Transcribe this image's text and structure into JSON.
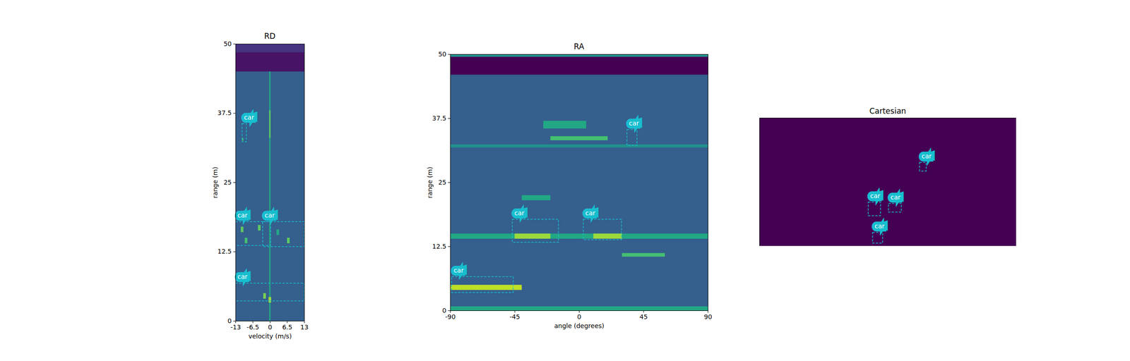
{
  "chart_data": [
    {
      "type": "heatmap",
      "title": "RD",
      "x_label": "velocity (m/s)",
      "y_label": "range (m)",
      "xlim": [
        -13,
        13
      ],
      "ylim": [
        0,
        50
      ],
      "xticks": [
        -13,
        -6.5,
        0,
        6.5,
        13
      ],
      "yticks": [
        0,
        12.5,
        25,
        37.5,
        50
      ],
      "zlim": [
        0,
        1
      ],
      "cells": [
        {
          "x": [
            -13,
            13
          ],
          "y": [
            0,
            50
          ],
          "value": 0.3
        },
        {
          "x": [
            -13,
            13
          ],
          "y": [
            45,
            48.5
          ],
          "value": 0.05
        },
        {
          "x": [
            -13,
            13
          ],
          "y": [
            48.5,
            50
          ],
          "value": 0.15
        },
        {
          "x": [
            -0.25,
            0.25
          ],
          "y": [
            0,
            45
          ],
          "value": 0.6
        },
        {
          "x": [
            -0.25,
            0.25
          ],
          "y": [
            33,
            38
          ],
          "value": 0.75
        },
        {
          "x": [
            -11,
            -10
          ],
          "y": [
            16,
            17
          ],
          "value": 0.75
        },
        {
          "x": [
            -9.5,
            -8.5
          ],
          "y": [
            14,
            15
          ],
          "value": 0.7
        },
        {
          "x": [
            -4.5,
            -3.5
          ],
          "y": [
            16.3,
            17.3
          ],
          "value": 0.75
        },
        {
          "x": [
            2.5,
            3.5
          ],
          "y": [
            15.5,
            16.5
          ],
          "value": 0.6
        },
        {
          "x": [
            6.5,
            7.5
          ],
          "y": [
            14,
            15
          ],
          "value": 0.75
        },
        {
          "x": [
            -2.5,
            -1.5
          ],
          "y": [
            4,
            5
          ],
          "value": 0.8
        },
        {
          "x": [
            -0.5,
            0.5
          ],
          "y": [
            3.3,
            4.3
          ],
          "value": 0.85
        },
        {
          "x": [
            -10.5,
            -10
          ],
          "y": [
            32.5,
            33
          ],
          "value": 0.7
        }
      ],
      "color": "#17becf",
      "boxes": [
        {
          "label": "car",
          "x": [
            -10.5,
            -8.9
          ],
          "y": [
            32.3,
            35.6
          ]
        },
        {
          "label": "car",
          "x": [
            -13,
            0.3
          ],
          "y": [
            13.6,
            17.9
          ]
        },
        {
          "label": "car",
          "x": [
            -2.7,
            13
          ],
          "y": [
            13.4,
            17.9
          ]
        },
        {
          "label": "car",
          "x": [
            -13,
            13
          ],
          "y": [
            3.6,
            6.8
          ]
        }
      ]
    },
    {
      "type": "heatmap",
      "title": "RA",
      "x_label": "angle (degrees)",
      "y_label": "range (m)",
      "xlim": [
        -90,
        90
      ],
      "ylim": [
        0,
        50
      ],
      "xticks": [
        -90,
        -45,
        0,
        45,
        90
      ],
      "yticks": [
        0,
        12.5,
        25,
        37.5,
        50
      ],
      "zlim": [
        0,
        1
      ],
      "cells": [
        {
          "x": [
            -90,
            90
          ],
          "y": [
            0,
            50
          ],
          "value": 0.3
        },
        {
          "x": [
            -90,
            90
          ],
          "y": [
            46,
            49.5
          ],
          "value": 0.0
        },
        {
          "x": [
            -90,
            90
          ],
          "y": [
            49.5,
            50
          ],
          "value": 0.5
        },
        {
          "x": [
            -90,
            90
          ],
          "y": [
            14,
            15
          ],
          "value": 0.6
        },
        {
          "x": [
            -45,
            -20
          ],
          "y": [
            14,
            15
          ],
          "value": 0.85
        },
        {
          "x": [
            10,
            30
          ],
          "y": [
            14,
            15
          ],
          "value": 0.85
        },
        {
          "x": [
            -90,
            -40
          ],
          "y": [
            4,
            5
          ],
          "value": 0.9
        },
        {
          "x": [
            30,
            60
          ],
          "y": [
            10.5,
            11.2
          ],
          "value": 0.7
        },
        {
          "x": [
            -20,
            20
          ],
          "y": [
            33.2,
            34
          ],
          "value": 0.7
        },
        {
          "x": [
            -25,
            5
          ],
          "y": [
            35.5,
            37
          ],
          "value": 0.6
        },
        {
          "x": [
            -90,
            90
          ],
          "y": [
            31.8,
            32.4
          ],
          "value": 0.5
        },
        {
          "x": [
            -90,
            90
          ],
          "y": [
            0,
            0.8
          ],
          "value": 0.6
        },
        {
          "x": [
            -40,
            -20
          ],
          "y": [
            21.5,
            22.5
          ],
          "value": 0.6
        }
      ],
      "color": "#17becf",
      "boxes": [
        {
          "label": "car",
          "x": [
            33.5,
            40.5
          ],
          "y": [
            32.2,
            35.3
          ]
        },
        {
          "label": "car",
          "x": [
            -46.6,
            -14.4
          ],
          "y": [
            13.3,
            17.8
          ]
        },
        {
          "label": "car",
          "x": [
            3,
            29.7
          ],
          "y": [
            13.8,
            17.8
          ]
        },
        {
          "label": "car",
          "x": [
            -89,
            -46
          ],
          "y": [
            3.5,
            6.6
          ]
        }
      ]
    },
    {
      "type": "heatmap",
      "title": "Cartesian",
      "tick_labels": false,
      "xlim": [
        -50,
        50
      ],
      "ylim": [
        0,
        50
      ],
      "zlim": [
        0,
        1
      ],
      "cells": [
        {
          "x": [
            -50,
            50
          ],
          "y": [
            0,
            50
          ],
          "value": 0.0
        }
      ],
      "color": "#17becf",
      "boxes": [
        {
          "label": "car",
          "x": [
            12.4,
            15
          ],
          "y": [
            29.2,
            32.6
          ]
        },
        {
          "label": "car",
          "x": [
            -7.6,
            -2.8
          ],
          "y": [
            11.8,
            17.1
          ]
        },
        {
          "label": "car",
          "x": [
            0.3,
            5.3
          ],
          "y": [
            13.2,
            16.6
          ]
        },
        {
          "label": "car",
          "x": [
            -5.9,
            -2
          ],
          "y": [
            1.1,
            5.3
          ]
        }
      ]
    }
  ]
}
